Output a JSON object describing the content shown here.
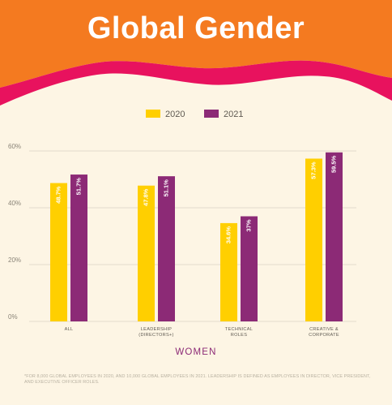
{
  "header": {
    "title": "Global Gender",
    "bg_color": "#f47a20",
    "wave_color": "#e8125e"
  },
  "chart_data": {
    "type": "bar",
    "title": "",
    "xlabel": "WOMEN",
    "ylabel": "",
    "ylim": [
      0,
      60
    ],
    "yticks": [
      "0%",
      "20%",
      "40%",
      "60%"
    ],
    "ytick_values": [
      0,
      20,
      40,
      60
    ],
    "grid": true,
    "legend_position": "top-center",
    "categories": [
      "ALL",
      "LEADERSHIP (DIRECTORS+)",
      "TECHNICAL ROLES",
      "CREATIVE & CORPORATE"
    ],
    "category_lines": [
      [
        "ALL"
      ],
      [
        "LEADERSHIP",
        "(DIRECTORS+)"
      ],
      [
        "TECHNICAL",
        "ROLES"
      ],
      [
        "CREATIVE &",
        "CORPORATE"
      ]
    ],
    "series": [
      {
        "name": "2020",
        "color": "#ffcf00",
        "values": [
          48.7,
          47.8,
          34.6,
          57.3
        ],
        "labels": [
          "48.7%",
          "47.8%",
          "34.6%",
          "57.3%"
        ]
      },
      {
        "name": "2021",
        "color": "#8c2a76",
        "values": [
          51.7,
          51.1,
          37,
          59.5
        ],
        "labels": [
          "51.7%",
          "51.1%",
          "37%",
          "59.5%"
        ]
      }
    ]
  },
  "footnote": "*For 8,000 global employees in 2020, and 10,000 global employees in 2021. Leadership is defined as employees in director, vice president, and executive officer roles."
}
